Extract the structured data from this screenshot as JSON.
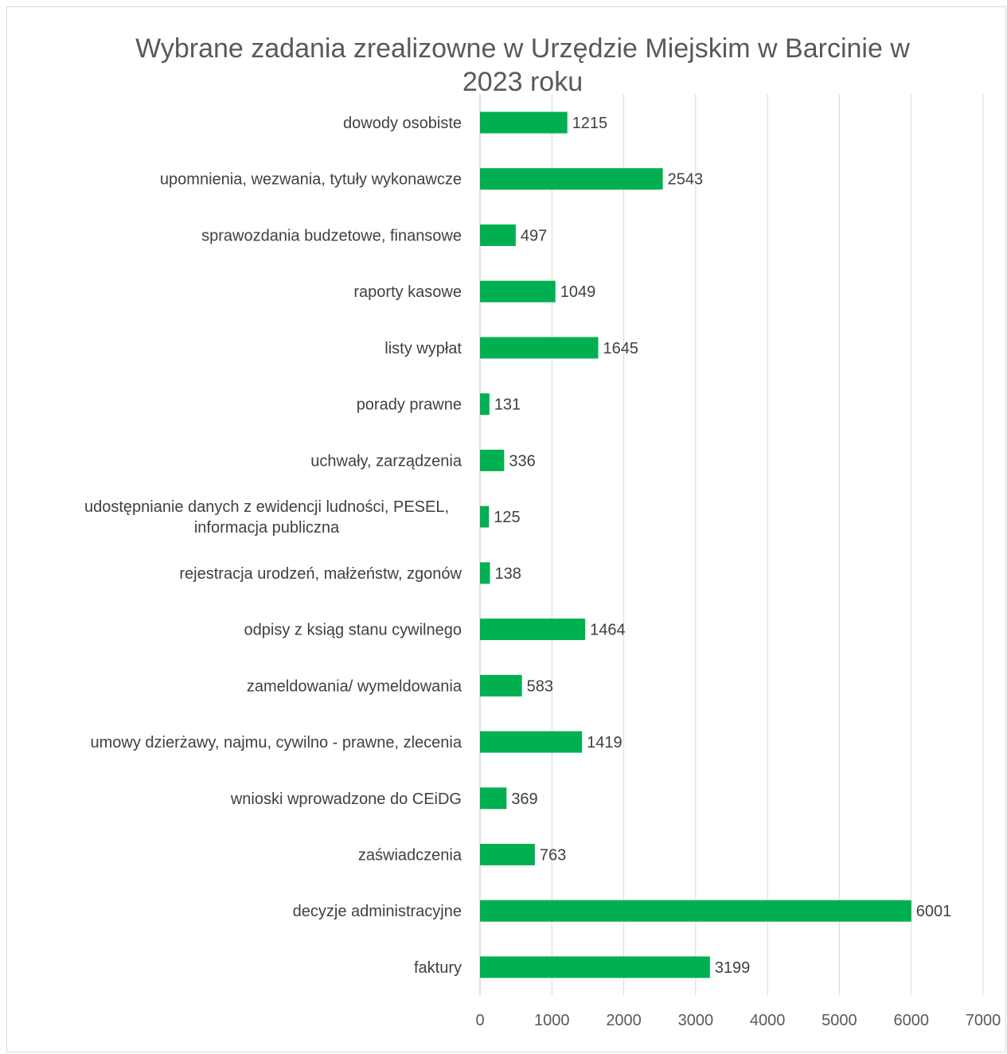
{
  "chart_data": {
    "type": "bar",
    "orientation": "horizontal",
    "title_lines": [
      "Wybrane zadania zrealizowne w Urzędzie Miejskim w Barcinie w",
      "2023 roku"
    ],
    "categories": [
      [
        "dowody osobiste"
      ],
      [
        "upomnienia, wezwania, tytuły wykonawcze"
      ],
      [
        "sprawozdania budzetowe, finansowe"
      ],
      [
        "raporty kasowe"
      ],
      [
        "listy wypłat"
      ],
      [
        "porady prawne"
      ],
      [
        "uchwały, zarządzenia"
      ],
      [
        "udostępnianie danych z ewidencji ludności, PESEL,",
        "informacja publiczna"
      ],
      [
        "rejestracja urodzeń, małżeństw, zgonów"
      ],
      [
        "odpisy z ksiąg stanu cywilnego"
      ],
      [
        "zameldowania/ wymeldowania"
      ],
      [
        "umowy dzierżawy, najmu, cywilno - prawne, zlecenia"
      ],
      [
        "wnioski wprowadzone do CEiDG"
      ],
      [
        "zaświadczenia"
      ],
      [
        "decyzje administracyjne"
      ],
      [
        "faktury"
      ]
    ],
    "values": [
      1215,
      2543,
      497,
      1049,
      1645,
      131,
      336,
      125,
      138,
      1464,
      583,
      1419,
      369,
      763,
      6001,
      3199
    ],
    "xlim": [
      0,
      7000
    ],
    "xticks": [
      "0",
      "1000",
      "2000",
      "3000",
      "4000",
      "5000",
      "6000",
      "7000"
    ],
    "grid": true,
    "bar_color": "#00b050"
  }
}
